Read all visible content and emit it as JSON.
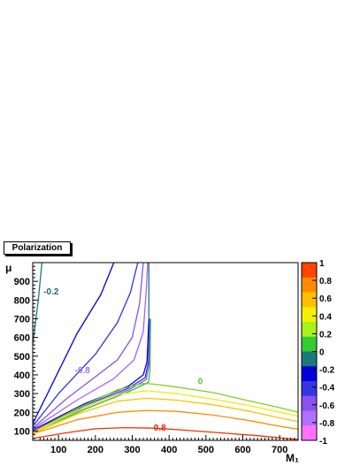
{
  "chart_data": {
    "type": "contour",
    "title": "Polarization",
    "xlabel": "M₁",
    "ylabel": "μ",
    "xlim": [
      30,
      750
    ],
    "ylim": [
      50,
      1000
    ],
    "xticks": [
      100,
      200,
      300,
      400,
      500,
      600,
      700
    ],
    "yticks": [
      100,
      200,
      300,
      400,
      500,
      600,
      700,
      800,
      900
    ],
    "colorbar": {
      "range": [
        -1,
        1
      ],
      "ticks": [
        "1",
        "0.8",
        "0.6",
        "0.4",
        "0.2",
        "0",
        "-0.2",
        "-0.4",
        "-0.6",
        "-0.8",
        "-1"
      ],
      "bands_top_to_bottom": [
        "#ff4500",
        "#ff8c00",
        "#ffc000",
        "#f5f000",
        "#a6f21c",
        "#33cc33",
        "#1a7a7a",
        "#0000dd",
        "#3535e6",
        "#8a50f0",
        "#b070ff",
        "#ff70ff"
      ]
    },
    "labels": [
      {
        "text": "-0.2",
        "x": 80,
        "y": 830,
        "color": "#1a6a6a"
      },
      {
        "text": "-0.8",
        "x": 165,
        "y": 410,
        "color": "#9a70e0"
      },
      {
        "text": "0",
        "x": 485,
        "y": 350,
        "color": "#4ecb2a"
      },
      {
        "text": "0.8",
        "x": 375,
        "y": 102,
        "color": "#ee2200"
      }
    ],
    "series": [
      {
        "color": "#1a7a7a",
        "points": [
          [
            30,
            560
          ],
          [
            45,
            800
          ],
          [
            55,
            1000
          ]
        ]
      },
      {
        "color": "#0000dd",
        "points": [
          [
            30,
            140
          ],
          [
            75,
            320
          ],
          [
            150,
            620
          ],
          [
            215,
            830
          ],
          [
            250,
            1000
          ]
        ]
      },
      {
        "color": "#3030e0",
        "points": [
          [
            30,
            125
          ],
          [
            100,
            300
          ],
          [
            200,
            510
          ],
          [
            260,
            680
          ],
          [
            295,
            840
          ],
          [
            315,
            1000
          ]
        ]
      },
      {
        "color": "#8a50f0",
        "points": [
          [
            30,
            115
          ],
          [
            120,
            270
          ],
          [
            200,
            390
          ],
          [
            260,
            480
          ],
          [
            300,
            600
          ],
          [
            320,
            780
          ],
          [
            330,
            1000
          ]
        ]
      },
      {
        "color": "#a860ff",
        "points": [
          [
            30,
            110
          ],
          [
            150,
            265
          ],
          [
            250,
            380
          ],
          [
            305,
            480
          ],
          [
            330,
            630
          ],
          [
            338,
            850
          ],
          [
            342,
            1000
          ]
        ]
      },
      {
        "color": "#1a7a7a",
        "points": [
          [
            345,
            700
          ],
          [
            345,
            1000
          ]
        ]
      },
      {
        "color": "#0000dd",
        "points": [
          [
            30,
            105
          ],
          [
            170,
            245
          ],
          [
            290,
            340
          ],
          [
            330,
            400
          ],
          [
            340,
            470
          ],
          [
            343,
            600
          ],
          [
            345,
            700
          ]
        ]
      },
      {
        "color": "#3535e6",
        "points": [
          [
            30,
            102
          ],
          [
            170,
            235
          ],
          [
            290,
            330
          ],
          [
            335,
            385
          ],
          [
            344,
            470
          ],
          [
            346,
            600
          ],
          [
            347,
            700
          ]
        ]
      },
      {
        "color": "#8a50f0",
        "points": [
          [
            30,
            100
          ],
          [
            170,
            225
          ],
          [
            290,
            320
          ],
          [
            338,
            375
          ],
          [
            346,
            460
          ],
          [
            348,
            600
          ],
          [
            349,
            700
          ]
        ]
      },
      {
        "color": "#33bb33",
        "points": [
          [
            30,
            95
          ],
          [
            170,
            215
          ],
          [
            290,
            310
          ],
          [
            344,
            360
          ],
          [
            348,
            420
          ],
          [
            349,
            600
          ],
          [
            350,
            700
          ]
        ]
      },
      {
        "color": "#7ed321",
        "points": [
          [
            30,
            92
          ],
          [
            150,
            220
          ],
          [
            260,
            320
          ],
          [
            330,
            355
          ],
          [
            360,
            350
          ],
          [
            420,
            335
          ],
          [
            520,
            305
          ],
          [
            620,
            260
          ],
          [
            700,
            225
          ],
          [
            750,
            200
          ]
        ]
      },
      {
        "color": "#eded00",
        "points": [
          [
            30,
            90
          ],
          [
            150,
            210
          ],
          [
            260,
            295
          ],
          [
            340,
            315
          ],
          [
            420,
            300
          ],
          [
            520,
            270
          ],
          [
            620,
            235
          ],
          [
            700,
            200
          ],
          [
            750,
            180
          ]
        ]
      },
      {
        "color": "#ffc000",
        "points": [
          [
            30,
            87
          ],
          [
            150,
            190
          ],
          [
            260,
            260
          ],
          [
            340,
            275
          ],
          [
            420,
            265
          ],
          [
            520,
            240
          ],
          [
            620,
            205
          ],
          [
            700,
            170
          ],
          [
            750,
            150
          ]
        ]
      },
      {
        "color": "#ff8c00",
        "points": [
          [
            30,
            85
          ],
          [
            150,
            160
          ],
          [
            260,
            200
          ],
          [
            340,
            210
          ],
          [
            420,
            205
          ],
          [
            520,
            185
          ],
          [
            620,
            155
          ],
          [
            700,
            125
          ],
          [
            750,
            110
          ]
        ]
      },
      {
        "color": "#ee3300",
        "points": [
          [
            30,
            60
          ],
          [
            120,
            90
          ],
          [
            200,
            112
          ],
          [
            280,
            118
          ],
          [
            360,
            115
          ],
          [
            440,
            105
          ],
          [
            540,
            90
          ],
          [
            640,
            75
          ],
          [
            720,
            60
          ],
          [
            750,
            55
          ]
        ]
      }
    ]
  }
}
